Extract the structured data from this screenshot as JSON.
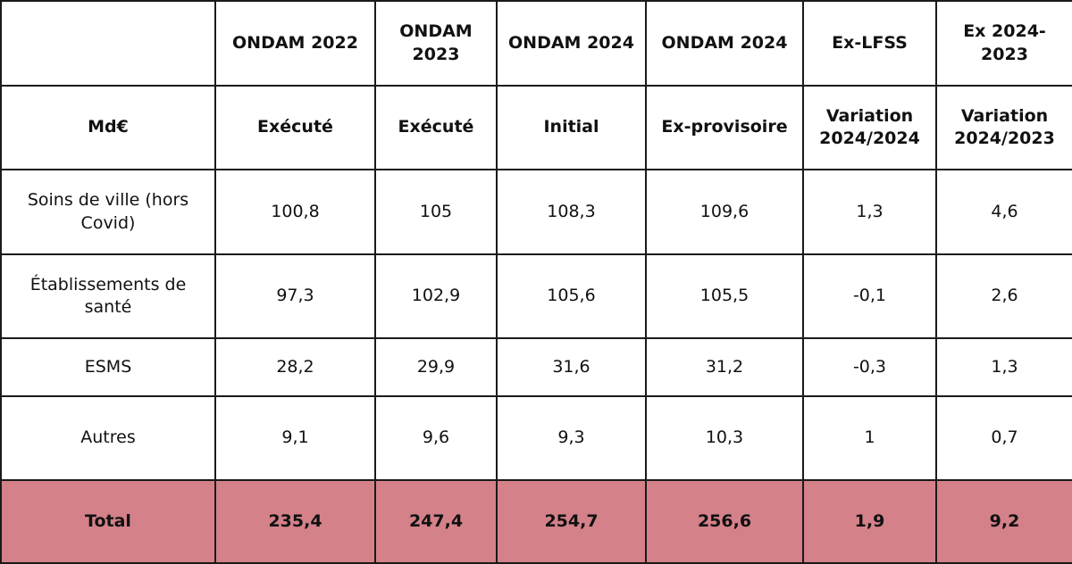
{
  "table": {
    "header_row_1": {
      "corner": "",
      "col1": "ONDAM 2022",
      "col2": "ONDAM 2023",
      "col3": "ONDAM 2024",
      "col4": "ONDAM 2024",
      "col5": "Ex-LFSS",
      "col6": "Ex 2024-2023"
    },
    "header_row_2": {
      "unit": "Md€",
      "col1": "Exécuté",
      "col2": "Exécuté",
      "col3": "Initial",
      "col4": "Ex-provisoire",
      "col5": "Variation 2024/2024",
      "col6": "Variation 2024/2023"
    },
    "rows": [
      {
        "label": "Soins de ville (hors Covid)",
        "values": [
          "100,8",
          "105",
          "108,3",
          "109,6",
          "1,3",
          "4,6"
        ]
      },
      {
        "label": "Établissements de santé",
        "values": [
          "97,3",
          "102,9",
          "105,6",
          "105,5",
          "-0,1",
          "2,6"
        ]
      },
      {
        "label": "ESMS",
        "values": [
          "28,2",
          "29,9",
          "31,6",
          "31,2",
          "-0,3",
          "1,3"
        ]
      },
      {
        "label": "Autres",
        "values": [
          "9,1",
          "9,6",
          "9,3",
          "10,3",
          "1",
          "0,7"
        ]
      }
    ],
    "total": {
      "label": "Total",
      "values": [
        "235,4",
        "247,4",
        "254,7",
        "256,6",
        "1,9",
        "9,2"
      ]
    },
    "colors": {
      "total_row_background": "#d4818a",
      "border": "#1a1a1a"
    }
  }
}
